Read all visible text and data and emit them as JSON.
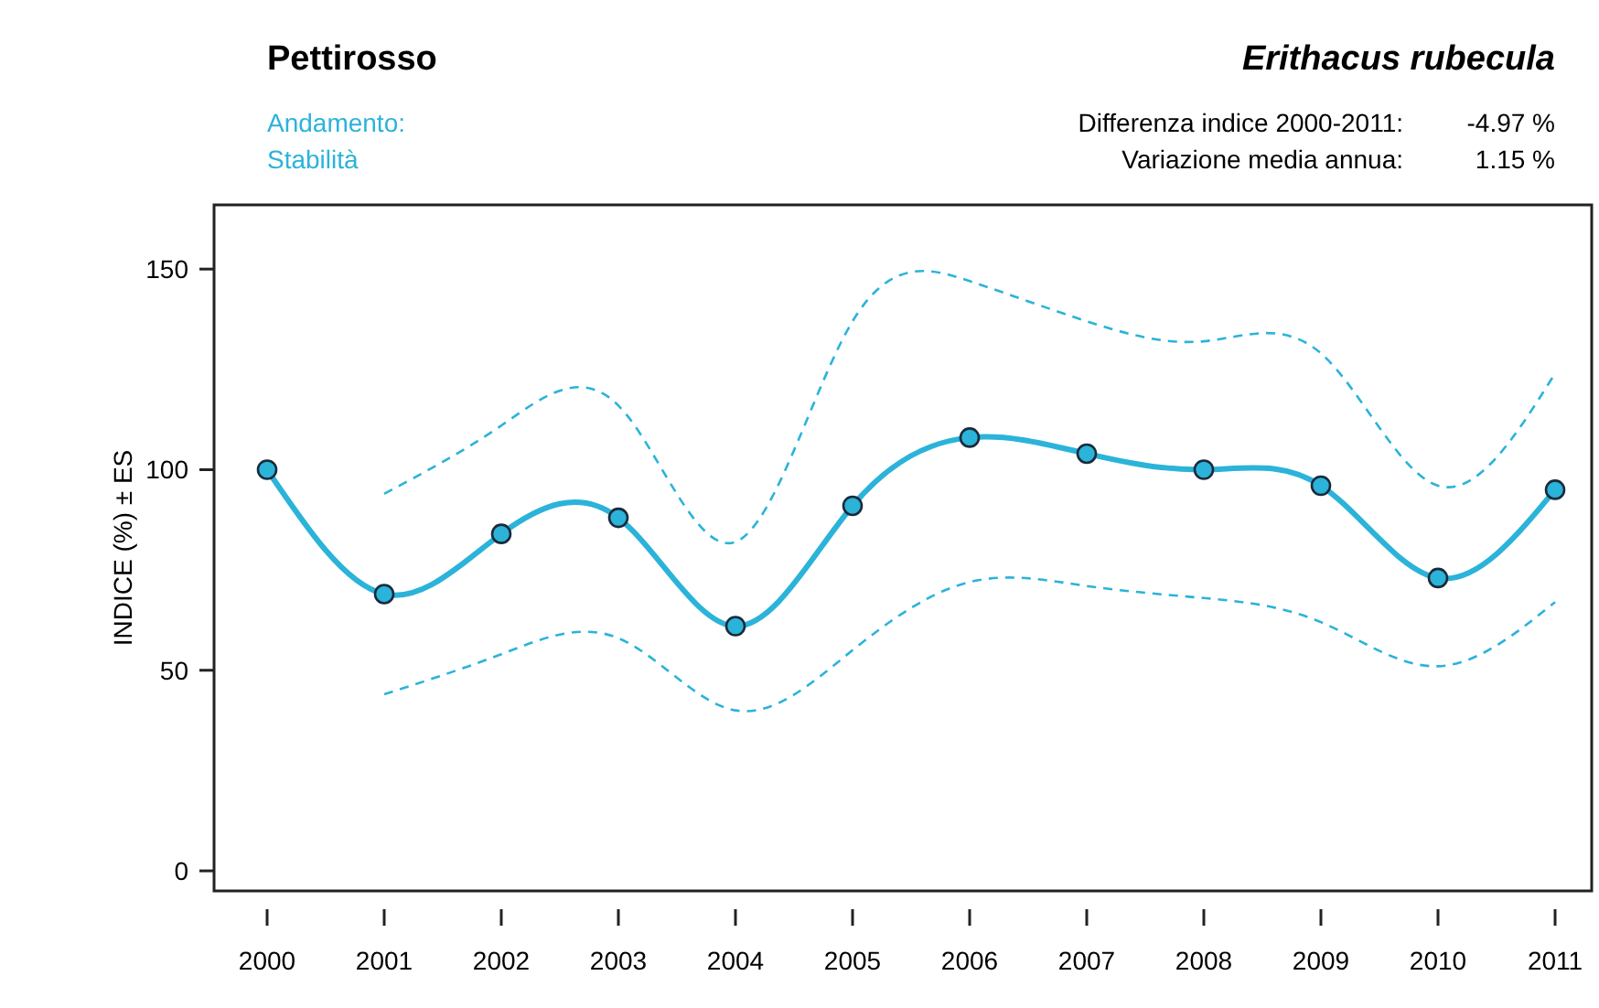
{
  "chart_data": {
    "type": "line",
    "title": "Pettirosso",
    "subtitle": "Erithacus rubecula",
    "ylabel": "INDICE (%) ± ES",
    "annotations": [
      "Andamento:",
      "Stabilità",
      "Differenza indice 2000-2011:",
      "-4.97 %",
      "Variazione media annua:",
      "1.15 %"
    ],
    "categories": [
      "2000",
      "2001",
      "2002",
      "2003",
      "2004",
      "2005",
      "2006",
      "2007",
      "2008",
      "2009",
      "2010",
      "2011"
    ],
    "series": [
      {
        "color": "#2bb3d9",
        "values": [
          100,
          69,
          84,
          88,
          61,
          91,
          108,
          104,
          100,
          96,
          73,
          95
        ]
      },
      {
        "color": "#2bb3d9",
        "line_style": "dashed",
        "marker": "none",
        "values": [
          null,
          44,
          54,
          58,
          40,
          55,
          72,
          71,
          68,
          62,
          51,
          67
        ]
      },
      {
        "color": "#2bb3d9",
        "line_style": "dashed",
        "marker": "none",
        "values": [
          null,
          94,
          111,
          116,
          82,
          137,
          147,
          137,
          132,
          129,
          96,
          124
        ]
      }
    ],
    "ylim": [
      -5,
      166
    ],
    "yticks": [
      0,
      50,
      100,
      150
    ],
    "grid": false,
    "marker": "circle",
    "line_style": "solid"
  }
}
